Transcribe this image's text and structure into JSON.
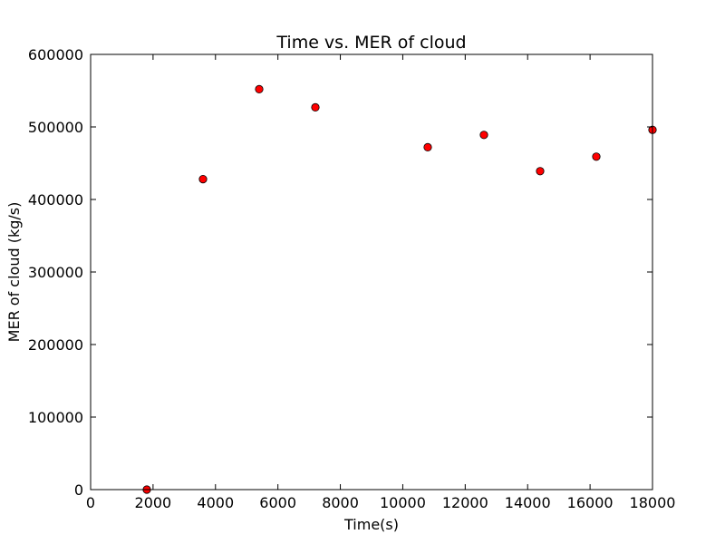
{
  "chart_data": {
    "type": "scatter",
    "title": "Time vs. MER of cloud",
    "xlabel": "Time(s)",
    "ylabel": "MER of cloud (kg/s)",
    "xlim": [
      0,
      18000
    ],
    "ylim": [
      0,
      600000
    ],
    "x_ticks": [
      0,
      2000,
      4000,
      6000,
      8000,
      10000,
      12000,
      14000,
      16000,
      18000
    ],
    "y_ticks": [
      0,
      100000,
      200000,
      300000,
      400000,
      500000,
      600000
    ],
    "x_tick_labels": [
      "0",
      "2000",
      "4000",
      "6000",
      "8000",
      "10000",
      "12000",
      "14000",
      "16000",
      "18000"
    ],
    "y_tick_labels": [
      "0",
      "100000",
      "200000",
      "300000",
      "400000",
      "500000",
      "600000"
    ],
    "grid": false,
    "marker_color": "#ff0000",
    "marker_edge_color": "#000000",
    "series": [
      {
        "x": [
          1800,
          3600,
          5400,
          7200,
          10800,
          12600,
          14400,
          16200,
          18000
        ],
        "y": [
          0,
          428000,
          552000,
          527000,
          472000,
          489000,
          439000,
          459000,
          496000
        ]
      }
    ]
  }
}
